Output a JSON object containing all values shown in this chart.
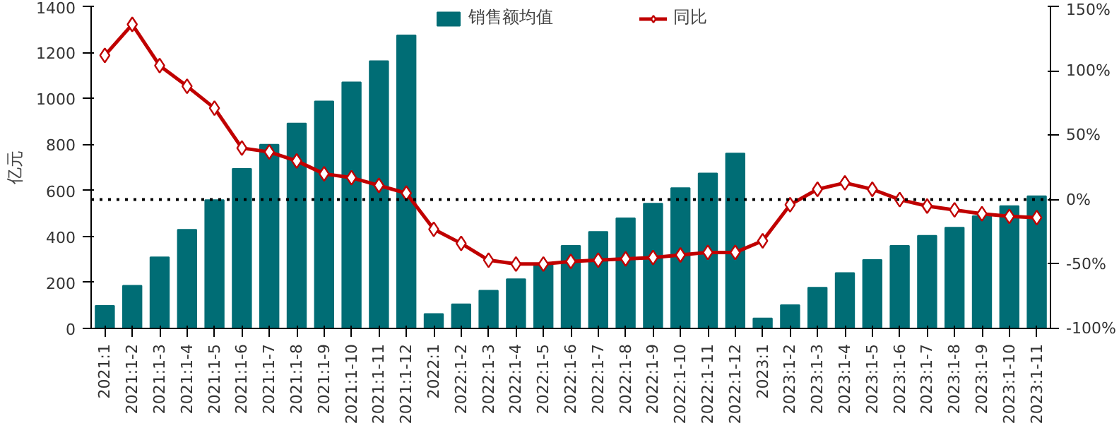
{
  "chart_data": {
    "type": "bar",
    "ylabel": "亿元",
    "categories": [
      "2021:1",
      "2021:1-2",
      "2021:1-3",
      "2021:1-4",
      "2021:1-5",
      "2021:1-6",
      "2021:1-7",
      "2021:1-8",
      "2021:1-9",
      "2021:1-10",
      "2021:1-11",
      "2021:1-12",
      "2022:1",
      "2022:1-2",
      "2022:1-3",
      "2022:1-4",
      "2022:1-5",
      "2022:1-6",
      "2022:1-7",
      "2022:1-8",
      "2022:1-9",
      "2022:1-10",
      "2022:1-11",
      "2022:1-12",
      "2023:1",
      "2023:1-2",
      "2023:1-3",
      "2023:1-4",
      "2023:1-5",
      "2023:1-6",
      "2023:1-7",
      "2023:1-8",
      "2023:1-9",
      "2023:1-10",
      "2023:1-11"
    ],
    "series": [
      {
        "name": "销售额均值",
        "color": "#006d75",
        "values": [
          98,
          186,
          309,
          429,
          558,
          694,
          799,
          891,
          987,
          1070,
          1162,
          1274,
          63,
          105,
          164,
          214,
          278,
          359,
          420,
          479,
          543,
          610,
          674,
          761,
          44,
          101,
          177,
          241,
          298,
          359,
          403,
          438,
          488,
          532,
          575
        ]
      },
      {
        "name": "同比",
        "type": "line",
        "axis": "y2",
        "color": "#c00000",
        "marker": "diamond",
        "values": [
          112,
          136,
          104,
          88,
          71,
          40,
          37,
          30,
          20,
          17,
          11,
          5,
          -23,
          -34,
          -47,
          -50,
          -50,
          -48,
          -47,
          -46,
          -45,
          -43,
          -41,
          -41,
          -32,
          -4,
          8,
          13,
          8,
          0,
          -5,
          -8,
          -11,
          -13,
          -14
        ]
      }
    ],
    "ylim": [
      0,
      1400
    ],
    "yticks": [
      0,
      200,
      400,
      600,
      800,
      1000,
      1200,
      1400
    ],
    "y2lim": [
      -100,
      150
    ],
    "y2ticks": [
      {
        "value": -100,
        "label": "-100%"
      },
      {
        "value": -50,
        "label": "-50%"
      },
      {
        "value": 0,
        "label": "0%"
      },
      {
        "value": 50,
        "label": "50%"
      },
      {
        "value": 100,
        "label": "100%"
      },
      {
        "value": 150,
        "label": "150%"
      }
    ],
    "ref_lines": [
      {
        "axis": "y2",
        "value": 0,
        "label": null,
        "color": "#000000",
        "line_style": "dotted"
      }
    ],
    "legend": "top",
    "grid": false
  }
}
